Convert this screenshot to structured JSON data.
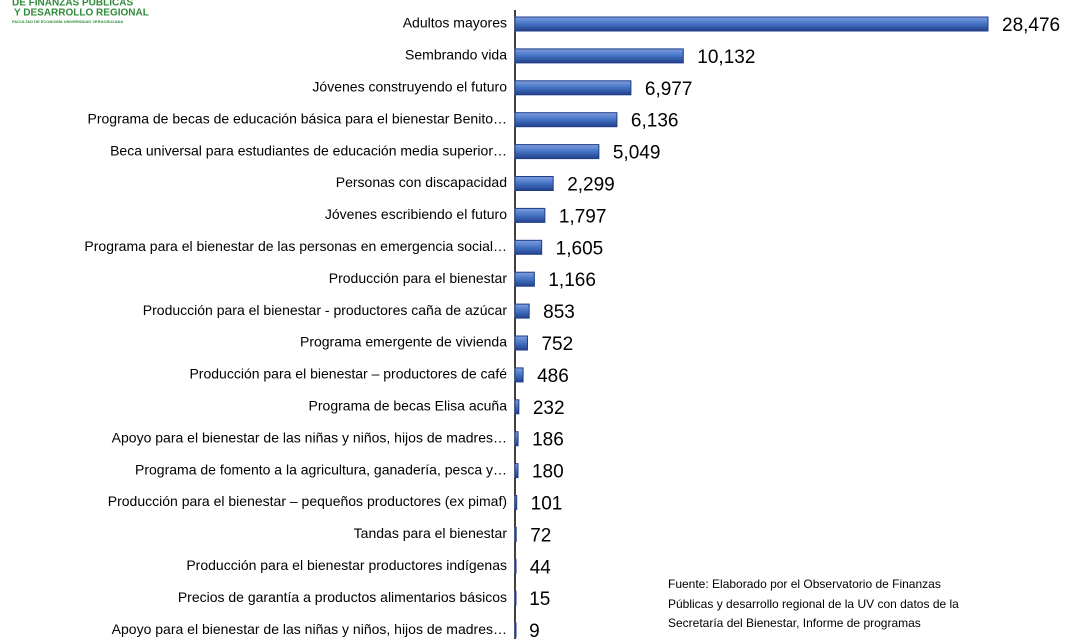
{
  "logo": {
    "lines": [
      "DE FINANZAS PÚBLICAS",
      "Y DESARROLLO REGIONAL",
      "FACULTAD DE ECONOMÍA UNIVERSIDAD VERACRUZANA"
    ]
  },
  "chart_data": {
    "type": "barh",
    "categories": [
      "Adultos mayores",
      "Sembrando vida",
      "Jóvenes construyendo el futuro",
      "Programa de becas de educación básica para el bienestar Benito…",
      "Beca universal para estudiantes de educación media superior…",
      "Personas con discapacidad",
      "Jóvenes escribiendo el futuro",
      "Programa para el bienestar de las personas en emergencia social…",
      "Producción para el bienestar",
      "Producción para el bienestar - productores caña de azúcar",
      "Programa emergente de vivienda",
      "Producción para el bienestar – productores de café",
      "Programa de becas Elisa acuña",
      "Apoyo para el bienestar de las niñas y niños, hijos de madres…",
      "Programa de fomento a la agricultura, ganadería, pesca y…",
      "Producción para el bienestar – pequeños productores (ex pimaf)",
      "Tandas para el bienestar",
      "Producción para el bienestar productores indígenas",
      "Precios de garantía a productos alimentarios básicos",
      "Apoyo para el bienestar de las niñas y niños, hijos de madres…"
    ],
    "values": [
      28476,
      10132,
      6977,
      6136,
      5049,
      2299,
      1797,
      1605,
      1166,
      853,
      752,
      486,
      232,
      186,
      180,
      101,
      72,
      44,
      15,
      9
    ],
    "value_labels": [
      "28,476",
      "10,132",
      "6,977",
      "6,136",
      "5,049",
      "2,299",
      "1,797",
      "1,605",
      "1,166",
      "853",
      "752",
      "486",
      "232",
      "186",
      "180",
      "101",
      "72",
      "44",
      "15",
      "9"
    ],
    "color": "#4472c4",
    "source_note": [
      "Fuente: Elaborado por el Observatorio de Finanzas",
      "Públicas y desarrollo regional de la UV con datos de la",
      "Secretaría del Bienestar, Informe de programas"
    ]
  }
}
